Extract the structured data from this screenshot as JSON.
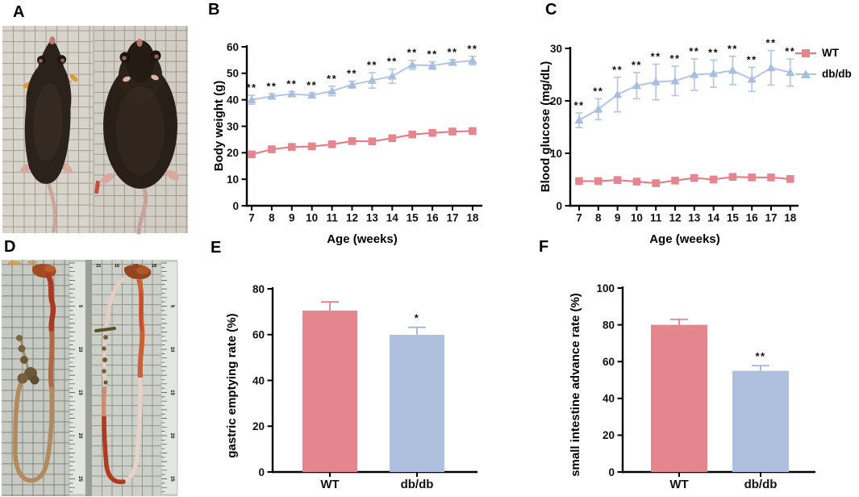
{
  "panels": {
    "a": {
      "letter": "A",
      "content": "photo of a lean WT mouse (left) and an obese db/db mouse (right) on grid paper"
    },
    "b": {
      "letter": "B"
    },
    "c": {
      "letter": "C"
    },
    "d": {
      "letter": "D",
      "content": "photo of dissected gastrointestinal tracts on grid paper with rulers",
      "ruler_numbers": [
        "5",
        "10",
        "15",
        "20",
        "25"
      ],
      "top_ruler_numbers": [
        "15",
        "16",
        "17",
        "18"
      ]
    },
    "e": {
      "letter": "E"
    },
    "f": {
      "letter": "F"
    }
  },
  "colors": {
    "axis": "#000000",
    "wt_fill": "#e5858e",
    "wt_line": "#ec737d",
    "db_fill": "#a9bddd",
    "db_line": "#b1c5e5",
    "significance": "#1a1a1a"
  },
  "chart_data": [
    {
      "id": "body_weight",
      "panel": "B",
      "type": "line",
      "xlabel": "Age (weeks)",
      "ylabel": "Body weight (g)",
      "x": [
        7,
        8,
        9,
        10,
        11,
        12,
        13,
        14,
        15,
        16,
        17,
        18
      ],
      "ylim": [
        0,
        60
      ],
      "yticks": [
        0,
        10,
        20,
        30,
        40,
        50,
        60
      ],
      "series": [
        {
          "name": "WT",
          "marker": "square",
          "fill_color": "#e5858e",
          "line_color": "#ec737d",
          "values": [
            19.4,
            21.3,
            22.2,
            22.4,
            23.2,
            24.4,
            24.3,
            25.5,
            26.9,
            27.5,
            28.0,
            28.2
          ],
          "errors": [
            0.5,
            0.5,
            0.5,
            0.5,
            0.5,
            0.5,
            0.5,
            0.5,
            0.5,
            0.5,
            0.5,
            0.5
          ]
        },
        {
          "name": "db/db",
          "marker": "triangle",
          "fill_color": "#a9bddd",
          "line_color": "#b1c5e5",
          "values": [
            40.0,
            41.3,
            42.2,
            41.7,
            43.3,
            45.7,
            47.3,
            48.9,
            53.2,
            52.9,
            54.1,
            54.8
          ],
          "errors": [
            1.7,
            0.9,
            0.9,
            0.9,
            1.8,
            1.3,
            2.9,
            2.7,
            1.7,
            1.4,
            1.0,
            1.6
          ],
          "significance": "**"
        }
      ]
    },
    {
      "id": "blood_glucose",
      "panel": "C",
      "type": "line",
      "xlabel": "Age (weeks)",
      "ylabel": "Blood glucose (mg/dL)",
      "x": [
        7,
        8,
        9,
        10,
        11,
        12,
        13,
        14,
        15,
        16,
        17,
        18
      ],
      "ylim": [
        0,
        30
      ],
      "yticks": [
        0,
        10,
        20,
        30
      ],
      "legend": {
        "position": "right",
        "items": [
          {
            "label": "WT"
          },
          {
            "label": "db/db"
          }
        ]
      },
      "series": [
        {
          "name": "WT",
          "marker": "square",
          "fill_color": "#e5858e",
          "line_color": "#ec737d",
          "values": [
            4.7,
            4.7,
            4.9,
            4.6,
            4.3,
            4.8,
            5.3,
            5.0,
            5.5,
            5.4,
            5.4,
            5.1
          ],
          "errors": [
            0.3,
            0.3,
            0.3,
            0.3,
            0.3,
            0.3,
            0.3,
            0.3,
            0.3,
            0.3,
            0.3,
            0.3
          ]
        },
        {
          "name": "db/db",
          "marker": "triangle",
          "fill_color": "#a9bddd",
          "line_color": "#b1c5e5",
          "values": [
            16.3,
            18.4,
            21.2,
            22.9,
            23.6,
            23.8,
            25.0,
            25.2,
            25.8,
            24.1,
            26.3,
            25.4
          ],
          "errors": [
            1.4,
            2.0,
            3.3,
            2.5,
            3.4,
            2.8,
            3.0,
            2.6,
            2.7,
            2.3,
            3.3,
            2.6
          ],
          "significance": "**"
        }
      ]
    },
    {
      "id": "gastric_emptying",
      "panel": "E",
      "type": "bar",
      "ylabel": "gastric emptying rate (%)",
      "categories": [
        "WT",
        "db/db"
      ],
      "values": [
        70.5,
        59.9
      ],
      "errors": [
        3.8,
        3.3
      ],
      "significance": [
        "",
        "*"
      ],
      "ylim": [
        0,
        80
      ],
      "yticks": [
        0,
        20,
        40,
        60,
        80
      ],
      "bar_colors": [
        "#e5858e",
        "#aec0de"
      ],
      "error_colors": [
        "#e8808a",
        "#9fb6d9"
      ]
    },
    {
      "id": "small_intestine_advance",
      "panel": "F",
      "type": "bar",
      "ylabel": "small intestine advance rate (%)",
      "categories": [
        "WT",
        "db/db"
      ],
      "values": [
        80,
        55
      ],
      "errors": [
        3,
        2.8
      ],
      "significance": [
        "",
        "**"
      ],
      "ylim": [
        0,
        100
      ],
      "yticks": [
        0,
        20,
        40,
        60,
        80,
        100
      ],
      "bar_colors": [
        "#e5858e",
        "#aec0de"
      ],
      "error_colors": [
        "#e8808a",
        "#9fb6d9"
      ]
    }
  ]
}
